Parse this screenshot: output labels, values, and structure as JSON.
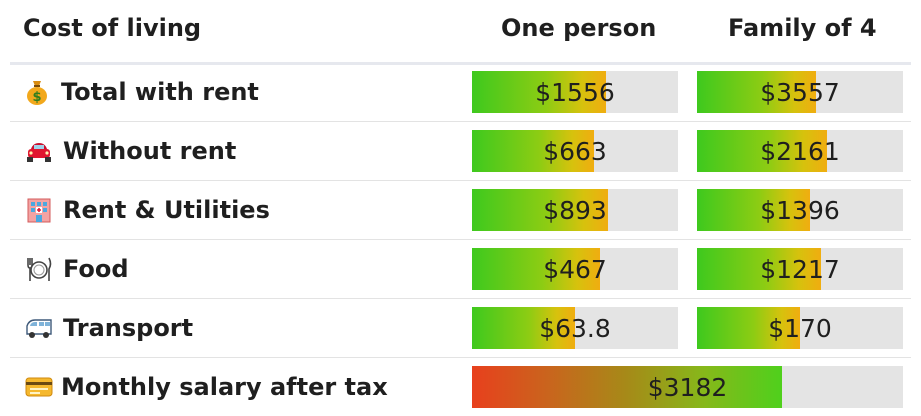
{
  "header": {
    "title": "Cost of living",
    "col_one": "One person",
    "col_family": "Family of 4"
  },
  "rows": [
    {
      "label": "Total with rent",
      "icon": "money-bag-icon",
      "one": "$1556",
      "family": "$3557",
      "one_level": 0.65,
      "family_level": 0.58
    },
    {
      "label": "Without rent",
      "icon": "car-icon",
      "one": "$663",
      "family": "$2161",
      "one_level": 0.59,
      "family_level": 0.63
    },
    {
      "label": "Rent & Utilities",
      "icon": "building-icon",
      "one": "$893",
      "family": "$1396",
      "one_level": 0.66,
      "family_level": 0.55
    },
    {
      "label": "Food",
      "icon": "plate-cutlery-icon",
      "one": "$467",
      "family": "$1217",
      "one_level": 0.62,
      "family_level": 0.6
    },
    {
      "label": "Transport",
      "icon": "van-icon",
      "one": "$63.8",
      "family": "$170",
      "one_level": 0.5,
      "family_level": 0.5
    }
  ],
  "salary": {
    "label": "Monthly salary after tax",
    "icon": "credit-card-icon",
    "value": "$3182",
    "level": 0.72
  },
  "colors": {
    "bar_track": "#e4e4e4",
    "cost_gradient": [
      "#3ec91e",
      "#8dcc13",
      "#d6c20d",
      "#f0ad10"
    ],
    "salary_gradient": [
      "#e8401d",
      "#a68a18",
      "#4fd01c"
    ]
  }
}
